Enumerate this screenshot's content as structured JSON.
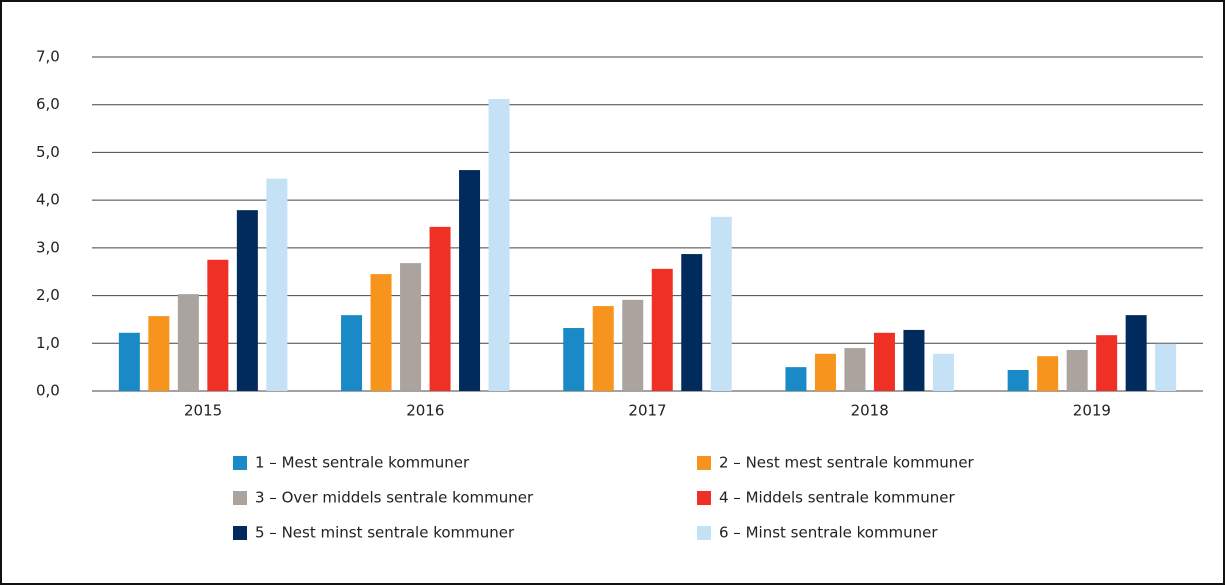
{
  "chart_data": {
    "type": "bar",
    "categories": [
      "2015",
      "2016",
      "2017",
      "2018",
      "2019"
    ],
    "series": [
      {
        "name": "1 – Mest sentrale kommuner",
        "color": "#1a8ac6",
        "values": [
          1.22,
          1.59,
          1.32,
          0.5,
          0.44
        ]
      },
      {
        "name": "2 – Nest mest sentrale kommuner",
        "color": "#f7941d",
        "values": [
          1.57,
          2.45,
          1.78,
          0.78,
          0.73
        ]
      },
      {
        "name": "3 – Over middels sentrale kommuner",
        "color": "#aba39e",
        "values": [
          2.03,
          2.68,
          1.91,
          0.9,
          0.86
        ]
      },
      {
        "name": "4 – Middels sentrale kommuner",
        "color": "#ee3124",
        "values": [
          2.75,
          3.44,
          2.56,
          1.22,
          1.17
        ]
      },
      {
        "name": "5 – Nest minst sentrale kommuner",
        "color": "#002b5c",
        "values": [
          3.79,
          4.63,
          2.87,
          1.28,
          1.59
        ]
      },
      {
        "name": "6 – Minst sentrale kommuner",
        "color": "#c4e1f5",
        "values": [
          4.45,
          6.12,
          3.65,
          0.78,
          0.99
        ]
      }
    ],
    "ylim": [
      0,
      7
    ],
    "yticks": [
      {
        "value": 0,
        "label": "0,0"
      },
      {
        "value": 1,
        "label": "1,0"
      },
      {
        "value": 2,
        "label": "2,0"
      },
      {
        "value": 3,
        "label": "3,0"
      },
      {
        "value": 4,
        "label": "4,0"
      },
      {
        "value": 5,
        "label": "5,0"
      },
      {
        "value": 6,
        "label": "6,0"
      },
      {
        "value": 7,
        "label": "7,0"
      }
    ],
    "grid": true
  }
}
